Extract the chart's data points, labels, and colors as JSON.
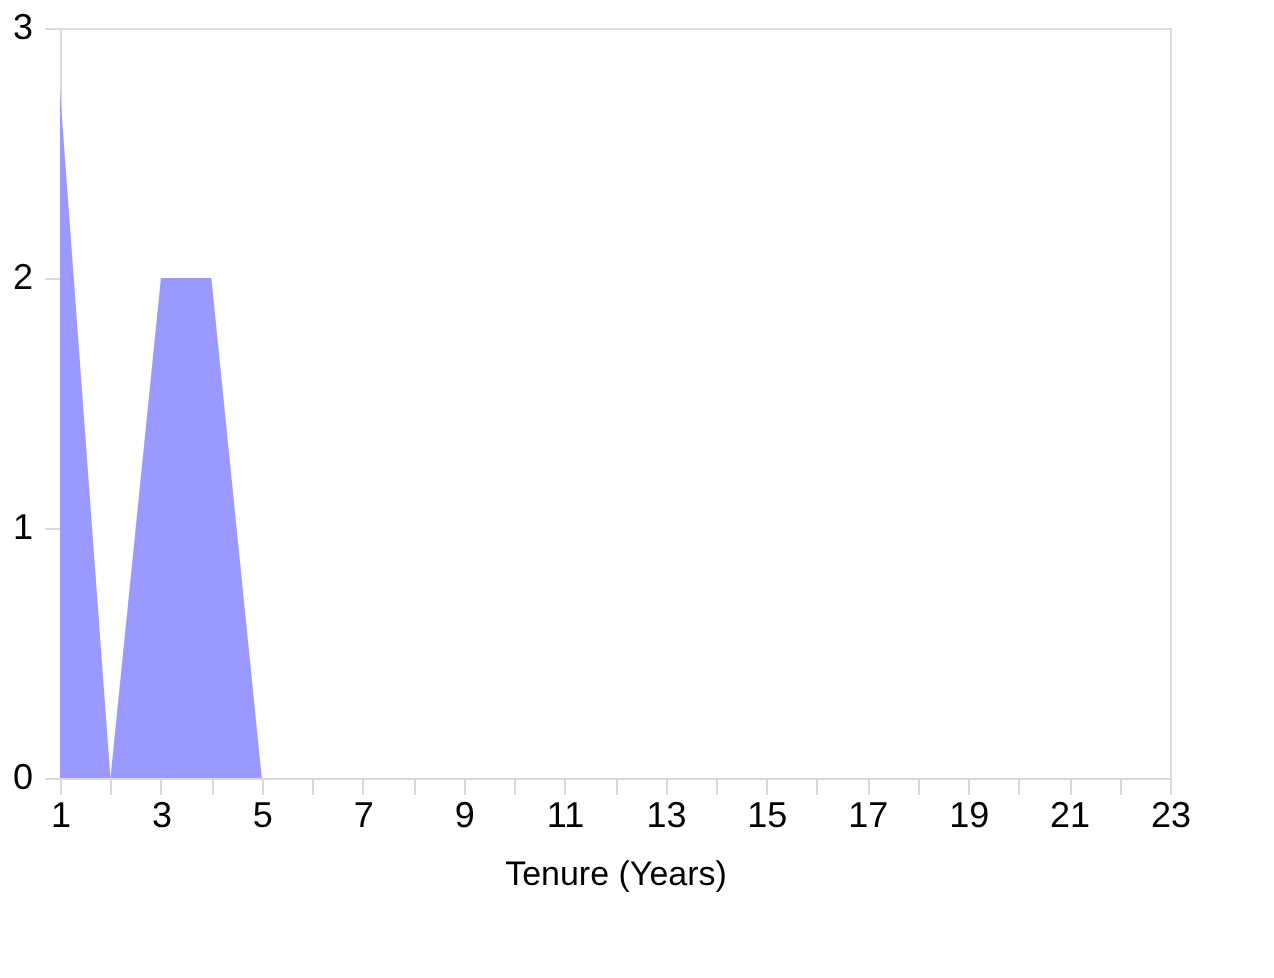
{
  "chart_data": {
    "type": "area",
    "xlabel": "Tenure (Years)",
    "x": [
      1,
      2,
      3,
      4,
      5,
      6,
      7,
      8,
      9,
      10,
      11,
      12,
      13,
      14,
      15,
      16,
      17,
      18,
      19,
      20,
      21,
      22,
      23
    ],
    "series": [
      {
        "color": "#9999ff",
        "values": [
          2.75,
          0,
          2,
          2,
          0,
          0,
          0,
          0,
          0,
          0,
          0,
          0,
          0,
          0,
          0,
          0,
          0,
          0,
          0,
          0,
          0,
          0,
          0
        ]
      }
    ],
    "xlim": [
      1,
      23
    ],
    "xticks": [
      1,
      {
        "value": 2,
        "label": null
      },
      3,
      {
        "value": 4,
        "label": null
      },
      5,
      {
        "value": 6,
        "label": null
      },
      7,
      {
        "value": 8,
        "label": null
      },
      9,
      {
        "value": 10,
        "label": null
      },
      11,
      {
        "value": 12,
        "label": null
      },
      13,
      {
        "value": 14,
        "label": null
      },
      15,
      {
        "value": 16,
        "label": null
      },
      17,
      {
        "value": 18,
        "label": null
      },
      19,
      {
        "value": 20,
        "label": null
      },
      21,
      {
        "value": 22,
        "label": null
      },
      23
    ],
    "ylim": [
      0,
      3
    ],
    "yticks": [
      0,
      1,
      2,
      3
    ],
    "grid": false
  }
}
